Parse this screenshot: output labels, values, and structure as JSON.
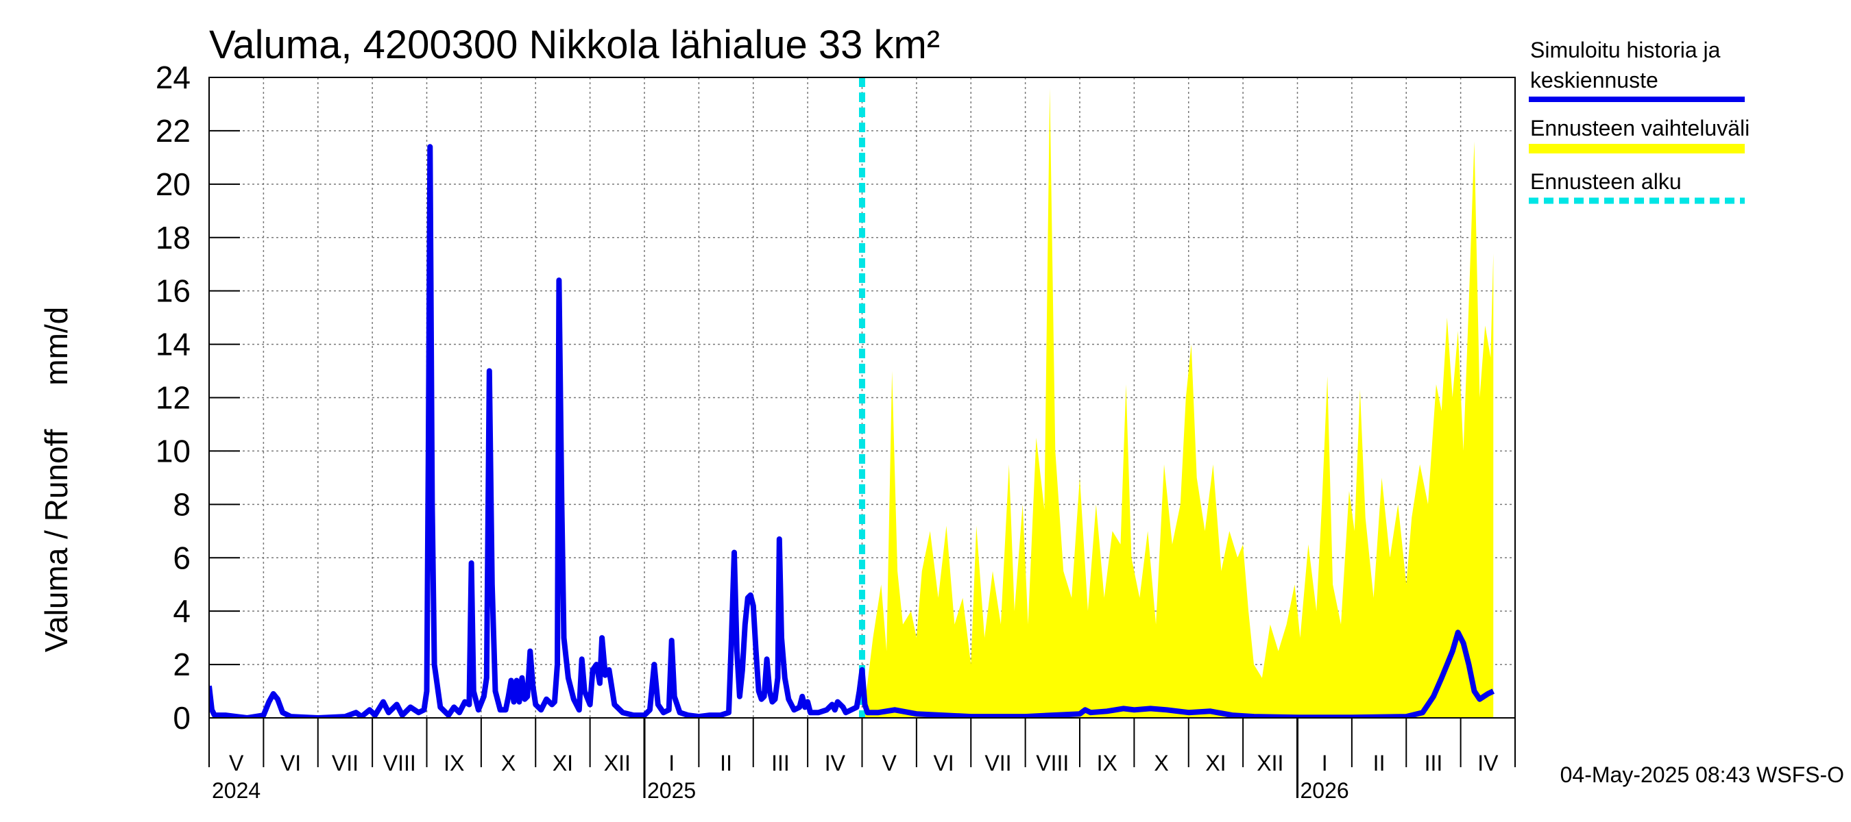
{
  "chart_data": {
    "type": "line",
    "title": "Valuma, 4200300 Nikkola lähialue 33 km²",
    "ylabel": "Valuma / Runoff     mm/d",
    "ylim": [
      0,
      24
    ],
    "yticks": [
      0,
      2,
      4,
      6,
      8,
      10,
      12,
      14,
      16,
      18,
      20,
      22,
      24
    ],
    "grid": true,
    "months": [
      "V",
      "VI",
      "VII",
      "VIII",
      "IX",
      "X",
      "XI",
      "XII",
      "I",
      "II",
      "III",
      "IV",
      "V",
      "VI",
      "VII",
      "VIII",
      "IX",
      "X",
      "XI",
      "XII",
      "I",
      "II",
      "III",
      "IV"
    ],
    "years": [
      "2024",
      "2025",
      "2026"
    ],
    "forecast_start_month_index": 12,
    "series": [
      {
        "name": "Simuloitu historia ja keskiennuste",
        "color": "#0000ee",
        "points": [
          [
            0.0,
            1.2
          ],
          [
            0.05,
            0.3
          ],
          [
            0.1,
            0.1
          ],
          [
            0.3,
            0.1
          ],
          [
            0.5,
            0.05
          ],
          [
            0.7,
            0.0
          ],
          [
            0.85,
            0.05
          ],
          [
            1.0,
            0.1
          ],
          [
            1.1,
            0.6
          ],
          [
            1.18,
            0.9
          ],
          [
            1.26,
            0.7
          ],
          [
            1.35,
            0.2
          ],
          [
            1.5,
            0.05
          ],
          [
            2.0,
            0.0
          ],
          [
            2.5,
            0.05
          ],
          [
            2.7,
            0.2
          ],
          [
            2.8,
            0.05
          ],
          [
            2.95,
            0.3
          ],
          [
            3.05,
            0.1
          ],
          [
            3.2,
            0.6
          ],
          [
            3.3,
            0.2
          ],
          [
            3.45,
            0.5
          ],
          [
            3.55,
            0.1
          ],
          [
            3.7,
            0.4
          ],
          [
            3.85,
            0.2
          ],
          [
            3.95,
            0.3
          ],
          [
            4.0,
            1.0
          ],
          [
            4.03,
            10.0
          ],
          [
            4.06,
            21.4
          ],
          [
            4.1,
            8.0
          ],
          [
            4.14,
            2.0
          ],
          [
            4.25,
            0.4
          ],
          [
            4.4,
            0.1
          ],
          [
            4.5,
            0.4
          ],
          [
            4.6,
            0.2
          ],
          [
            4.7,
            0.6
          ],
          [
            4.78,
            0.5
          ],
          [
            4.82,
            5.8
          ],
          [
            4.86,
            1.0
          ],
          [
            4.95,
            0.3
          ],
          [
            5.05,
            0.8
          ],
          [
            5.1,
            1.5
          ],
          [
            5.15,
            13.0
          ],
          [
            5.2,
            5.0
          ],
          [
            5.26,
            1.0
          ],
          [
            5.35,
            0.3
          ],
          [
            5.45,
            0.3
          ],
          [
            5.5,
            0.8
          ],
          [
            5.55,
            1.4
          ],
          [
            5.6,
            0.6
          ],
          [
            5.65,
            1.4
          ],
          [
            5.7,
            0.6
          ],
          [
            5.75,
            1.5
          ],
          [
            5.8,
            0.7
          ],
          [
            5.85,
            0.8
          ],
          [
            5.9,
            2.5
          ],
          [
            5.95,
            1.2
          ],
          [
            6.0,
            0.5
          ],
          [
            6.1,
            0.3
          ],
          [
            6.2,
            0.7
          ],
          [
            6.25,
            0.6
          ],
          [
            6.3,
            0.5
          ],
          [
            6.35,
            0.6
          ],
          [
            6.4,
            2.0
          ],
          [
            6.43,
            16.4
          ],
          [
            6.48,
            8.0
          ],
          [
            6.52,
            3.0
          ],
          [
            6.6,
            1.5
          ],
          [
            6.7,
            0.7
          ],
          [
            6.8,
            0.3
          ],
          [
            6.85,
            2.2
          ],
          [
            6.9,
            1.0
          ],
          [
            7.0,
            0.5
          ],
          [
            7.05,
            1.8
          ],
          [
            7.12,
            2.0
          ],
          [
            7.18,
            1.3
          ],
          [
            7.22,
            3.0
          ],
          [
            7.28,
            1.6
          ],
          [
            7.35,
            1.8
          ],
          [
            7.45,
            0.5
          ],
          [
            7.6,
            0.2
          ],
          [
            7.8,
            0.1
          ],
          [
            8.0,
            0.1
          ],
          [
            8.1,
            0.3
          ],
          [
            8.18,
            2.0
          ],
          [
            8.25,
            0.5
          ],
          [
            8.35,
            0.2
          ],
          [
            8.45,
            0.3
          ],
          [
            8.5,
            2.9
          ],
          [
            8.55,
            0.8
          ],
          [
            8.65,
            0.2
          ],
          [
            8.8,
            0.1
          ],
          [
            9.0,
            0.05
          ],
          [
            9.2,
            0.1
          ],
          [
            9.4,
            0.1
          ],
          [
            9.55,
            0.2
          ],
          [
            9.6,
            3.0
          ],
          [
            9.65,
            6.2
          ],
          [
            9.7,
            2.5
          ],
          [
            9.75,
            0.8
          ],
          [
            9.8,
            1.8
          ],
          [
            9.85,
            3.5
          ],
          [
            9.9,
            4.5
          ],
          [
            9.95,
            4.6
          ],
          [
            10.0,
            4.2
          ],
          [
            10.05,
            2.5
          ],
          [
            10.1,
            1.0
          ],
          [
            10.15,
            0.7
          ],
          [
            10.2,
            0.8
          ],
          [
            10.25,
            2.2
          ],
          [
            10.3,
            1.0
          ],
          [
            10.35,
            0.6
          ],
          [
            10.4,
            0.7
          ],
          [
            10.45,
            1.5
          ],
          [
            10.48,
            6.7
          ],
          [
            10.52,
            3.0
          ],
          [
            10.58,
            1.5
          ],
          [
            10.65,
            0.7
          ],
          [
            10.75,
            0.3
          ],
          [
            10.85,
            0.4
          ],
          [
            10.9,
            0.8
          ],
          [
            10.95,
            0.4
          ],
          [
            11.0,
            0.6
          ],
          [
            11.05,
            0.2
          ],
          [
            11.2,
            0.2
          ],
          [
            11.35,
            0.3
          ],
          [
            11.45,
            0.5
          ],
          [
            11.5,
            0.3
          ],
          [
            11.55,
            0.6
          ],
          [
            11.65,
            0.4
          ],
          [
            11.7,
            0.2
          ],
          [
            11.8,
            0.3
          ],
          [
            11.9,
            0.4
          ],
          [
            11.95,
            1.0
          ],
          [
            12.0,
            1.8
          ],
          [
            12.05,
            0.5
          ],
          [
            12.1,
            0.2
          ],
          [
            12.3,
            0.2
          ],
          [
            12.6,
            0.3
          ],
          [
            13.0,
            0.15
          ],
          [
            14.0,
            0.05
          ],
          [
            15.0,
            0.05
          ],
          [
            15.5,
            0.1
          ],
          [
            16.0,
            0.15
          ],
          [
            16.1,
            0.3
          ],
          [
            16.2,
            0.2
          ],
          [
            16.5,
            0.25
          ],
          [
            16.8,
            0.35
          ],
          [
            17.0,
            0.3
          ],
          [
            17.3,
            0.35
          ],
          [
            17.6,
            0.3
          ],
          [
            18.0,
            0.2
          ],
          [
            18.4,
            0.25
          ],
          [
            18.8,
            0.1
          ],
          [
            19.2,
            0.05
          ],
          [
            20.0,
            0.02
          ],
          [
            21.0,
            0.02
          ],
          [
            22.0,
            0.05
          ],
          [
            22.3,
            0.2
          ],
          [
            22.5,
            0.8
          ],
          [
            22.65,
            1.5
          ],
          [
            22.75,
            2.0
          ],
          [
            22.85,
            2.5
          ],
          [
            22.95,
            3.2
          ],
          [
            23.05,
            2.8
          ],
          [
            23.15,
            2.0
          ],
          [
            23.25,
            1.0
          ],
          [
            23.35,
            0.7
          ],
          [
            23.5,
            0.9
          ],
          [
            23.6,
            1.0
          ]
        ]
      },
      {
        "name": "Ennusteen vaihteluväli",
        "color": "#ffff00",
        "points": [
          [
            12.05,
            0.5
          ],
          [
            12.2,
            3.0
          ],
          [
            12.35,
            5.0
          ],
          [
            12.45,
            2.5
          ],
          [
            12.55,
            13.0
          ],
          [
            12.65,
            5.5
          ],
          [
            12.75,
            3.5
          ],
          [
            12.9,
            4.0
          ],
          [
            13.0,
            3.0
          ],
          [
            13.1,
            5.5
          ],
          [
            13.25,
            7.0
          ],
          [
            13.4,
            4.5
          ],
          [
            13.55,
            7.2
          ],
          [
            13.7,
            3.5
          ],
          [
            13.85,
            4.5
          ],
          [
            14.0,
            2.0
          ],
          [
            14.1,
            7.2
          ],
          [
            14.25,
            3.0
          ],
          [
            14.4,
            5.5
          ],
          [
            14.55,
            3.5
          ],
          [
            14.7,
            9.5
          ],
          [
            14.8,
            4.0
          ],
          [
            14.95,
            8.0
          ],
          [
            15.05,
            3.5
          ],
          [
            15.2,
            10.5
          ],
          [
            15.35,
            7.8
          ],
          [
            15.45,
            23.6
          ],
          [
            15.55,
            10.0
          ],
          [
            15.7,
            5.5
          ],
          [
            15.85,
            4.5
          ],
          [
            16.0,
            9.0
          ],
          [
            16.15,
            4.0
          ],
          [
            16.3,
            8.0
          ],
          [
            16.45,
            4.5
          ],
          [
            16.6,
            7.0
          ],
          [
            16.75,
            6.5
          ],
          [
            16.85,
            12.5
          ],
          [
            16.95,
            6.0
          ],
          [
            17.1,
            4.5
          ],
          [
            17.25,
            7.0
          ],
          [
            17.4,
            3.5
          ],
          [
            17.55,
            9.5
          ],
          [
            17.7,
            6.5
          ],
          [
            17.85,
            8.0
          ],
          [
            17.95,
            12.0
          ],
          [
            18.05,
            14.0
          ],
          [
            18.15,
            9.0
          ],
          [
            18.3,
            7.0
          ],
          [
            18.45,
            9.5
          ],
          [
            18.6,
            5.5
          ],
          [
            18.75,
            7.0
          ],
          [
            18.9,
            6.0
          ],
          [
            19.0,
            6.5
          ],
          [
            19.1,
            4.0
          ],
          [
            19.2,
            2.0
          ],
          [
            19.35,
            1.5
          ],
          [
            19.5,
            3.5
          ],
          [
            19.65,
            2.5
          ],
          [
            19.8,
            3.5
          ],
          [
            19.95,
            5.0
          ],
          [
            20.05,
            3.0
          ],
          [
            20.2,
            6.5
          ],
          [
            20.35,
            4.0
          ],
          [
            20.45,
            8.0
          ],
          [
            20.55,
            12.8
          ],
          [
            20.65,
            5.0
          ],
          [
            20.8,
            3.5
          ],
          [
            20.95,
            8.5
          ],
          [
            21.05,
            7.0
          ],
          [
            21.15,
            12.3
          ],
          [
            21.25,
            7.5
          ],
          [
            21.4,
            4.5
          ],
          [
            21.55,
            9.0
          ],
          [
            21.7,
            6.0
          ],
          [
            21.85,
            8.0
          ],
          [
            22.0,
            5.0
          ],
          [
            22.1,
            7.5
          ],
          [
            22.25,
            9.5
          ],
          [
            22.4,
            8.0
          ],
          [
            22.55,
            12.5
          ],
          [
            22.65,
            11.5
          ],
          [
            22.75,
            15.0
          ],
          [
            22.85,
            12.0
          ],
          [
            22.95,
            14.5
          ],
          [
            23.05,
            10.0
          ],
          [
            23.15,
            15.5
          ],
          [
            23.25,
            21.6
          ],
          [
            23.35,
            12.0
          ],
          [
            23.45,
            14.7
          ],
          [
            23.55,
            13.5
          ],
          [
            23.6,
            17.4
          ]
        ]
      },
      {
        "name": "Ennusteen alku",
        "color": "#00e5e5",
        "style": "dashed"
      }
    ],
    "timestamp": "04-May-2025 08:43 WSFS-O"
  },
  "legend": {
    "history_line1": "Simuloitu historia ja",
    "history_line2": "keskiennuste",
    "range": "Ennusteen vaihteluväli",
    "start": "Ennusteen alku"
  }
}
